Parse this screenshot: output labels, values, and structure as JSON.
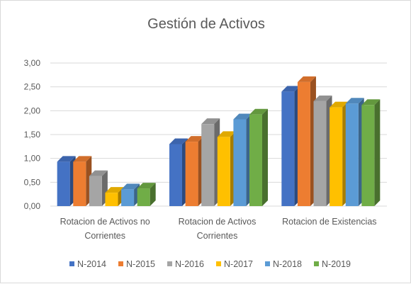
{
  "chart_data": {
    "type": "bar",
    "title": "Gestión de Activos",
    "xlabel": "",
    "ylabel": "",
    "categories": [
      [
        "Rotacion de Activos no",
        "Corrientes"
      ],
      [
        "Rotacion de Activos",
        "Corrientes"
      ],
      [
        "Rotacion de Existencias"
      ]
    ],
    "series": [
      {
        "name": "N-2014",
        "color": "#4472C4",
        "values": [
          0.93,
          1.3,
          2.4
        ]
      },
      {
        "name": "N-2015",
        "color": "#ED7D31",
        "values": [
          0.93,
          1.35,
          2.6
        ]
      },
      {
        "name": "N-2016",
        "color": "#A5A5A5",
        "values": [
          0.63,
          1.72,
          2.2
        ]
      },
      {
        "name": "N-2017",
        "color": "#FFC000",
        "values": [
          0.28,
          1.45,
          2.07
        ]
      },
      {
        "name": "N-2018",
        "color": "#5B9BD5",
        "values": [
          0.35,
          1.82,
          2.15
        ]
      },
      {
        "name": "N-2019",
        "color": "#70AD47",
        "values": [
          0.37,
          1.92,
          2.12
        ]
      }
    ],
    "ylim": [
      0,
      3
    ],
    "yticks": [
      "0,00",
      "0,50",
      "1,00",
      "1,50",
      "2,00",
      "2,50",
      "3,00"
    ],
    "ytick_values": [
      0,
      0.5,
      1.0,
      1.5,
      2.0,
      2.5,
      3.0
    ],
    "grid": true,
    "legend": "bottom",
    "style": "3d-clustered-column"
  }
}
